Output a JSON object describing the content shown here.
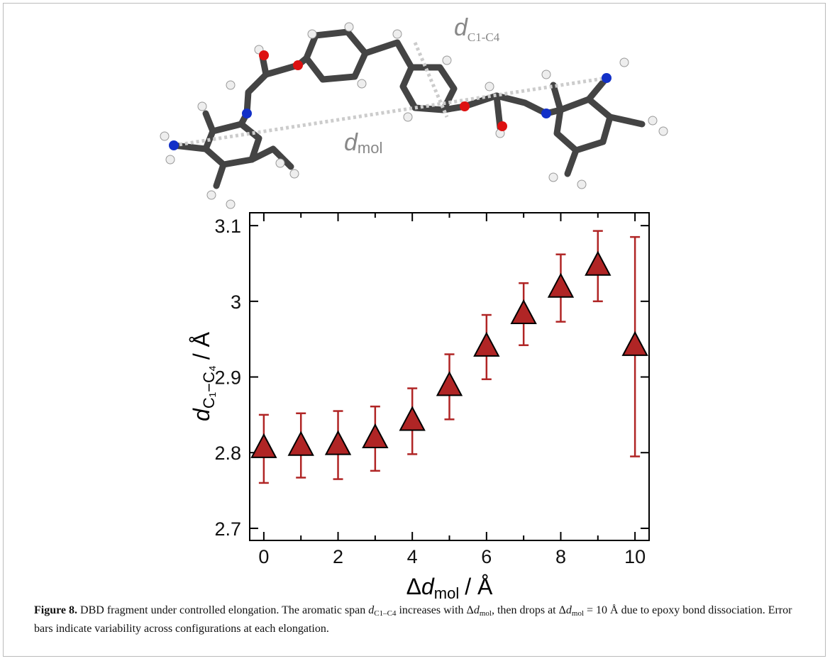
{
  "molecule": {
    "label_c": {
      "main": "d",
      "sub": "C1-C4"
    },
    "label_mol": {
      "main": "d",
      "sub": "mol"
    }
  },
  "chart_data": {
    "type": "errorbar-scatter",
    "x": [
      0,
      1,
      2,
      3,
      4,
      5,
      6,
      7,
      8,
      9,
      10
    ],
    "values": [
      2.805,
      2.808,
      2.809,
      2.818,
      2.841,
      2.887,
      2.939,
      2.982,
      3.017,
      3.046,
      2.94
    ],
    "error_low": [
      0.045,
      0.041,
      0.044,
      0.042,
      0.043,
      0.043,
      0.042,
      0.04,
      0.044,
      0.046,
      0.145
    ],
    "error_high": [
      0.045,
      0.044,
      0.046,
      0.043,
      0.044,
      0.043,
      0.043,
      0.042,
      0.045,
      0.047,
      0.145
    ],
    "color": "#b02525",
    "xlim": [
      -0.38,
      10.38
    ],
    "xticks": [
      0,
      2,
      4,
      6,
      8,
      10
    ],
    "xminor": [
      1,
      3,
      5,
      7,
      9
    ],
    "ylim": [
      2.684,
      3.117
    ],
    "yticks": [
      2.7,
      2.8,
      2.9,
      3,
      3.1
    ],
    "x_label": {
      "prefix": "Δ",
      "main": "d",
      "sub": "mol",
      "unit": "/ Å"
    },
    "y_label": {
      "main": "d",
      "sub": "C₁−C₄",
      "unit": "/ Å"
    }
  },
  "caption": {
    "runs": [
      {
        "text": "Figure 8.",
        "style": "b"
      },
      {
        "text": " DBD fragment under controlled elongation. The aromatic span ",
        "style": ""
      },
      {
        "text": "d",
        "style": "i"
      },
      {
        "text": "C1–C4",
        "style": "sub"
      },
      {
        "text": " increases with Δ",
        "style": ""
      },
      {
        "text": "d",
        "style": "i"
      },
      {
        "text": "mol",
        "style": "sub"
      },
      {
        "text": ", then drops at Δ",
        "style": ""
      },
      {
        "text": "d",
        "style": "i"
      },
      {
        "text": "mol",
        "style": "sub"
      },
      {
        "text": " = 10 Å due to epoxy bond dissociation. Error bars indicate variability across configurations at each elongation.",
        "style": ""
      }
    ]
  }
}
